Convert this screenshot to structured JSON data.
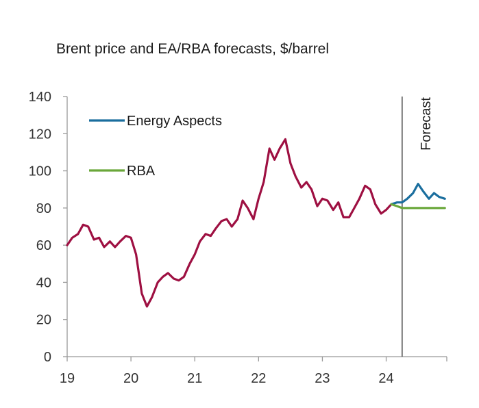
{
  "chart_data": {
    "type": "line",
    "title": "Brent price and EA/RBA forecasts, $/barrel",
    "xlabel": "",
    "ylabel": "",
    "ylim": [
      0,
      140
    ],
    "yticks": [
      0,
      20,
      40,
      60,
      80,
      100,
      120,
      140
    ],
    "xlim": [
      2019,
      2024.95
    ],
    "xticks": [
      {
        "value": 2019,
        "label": "19"
      },
      {
        "value": 2020,
        "label": "20"
      },
      {
        "value": 2021,
        "label": "21"
      },
      {
        "value": 2022,
        "label": "22"
      },
      {
        "value": 2023,
        "label": "23"
      },
      {
        "value": 2024,
        "label": "24"
      }
    ],
    "forecast_start": 2024.25,
    "forecast_label": "Forecast",
    "colors": {
      "brent": "#9e1042",
      "energy_aspects": "#1a6e9e",
      "rba": "#6aa73a",
      "axis": "#999999",
      "forecast_line": "#555555"
    },
    "series": [
      {
        "name": "Brent",
        "key": "brent",
        "legend": false,
        "points": [
          [
            2019.0,
            60
          ],
          [
            2019.08,
            64
          ],
          [
            2019.17,
            66
          ],
          [
            2019.25,
            71
          ],
          [
            2019.33,
            70
          ],
          [
            2019.42,
            63
          ],
          [
            2019.5,
            64
          ],
          [
            2019.58,
            59
          ],
          [
            2019.67,
            62
          ],
          [
            2019.75,
            59
          ],
          [
            2019.83,
            62
          ],
          [
            2019.92,
            65
          ],
          [
            2020.0,
            64
          ],
          [
            2020.08,
            55
          ],
          [
            2020.17,
            34
          ],
          [
            2020.25,
            27
          ],
          [
            2020.33,
            32
          ],
          [
            2020.42,
            40
          ],
          [
            2020.5,
            43
          ],
          [
            2020.58,
            45
          ],
          [
            2020.67,
            42
          ],
          [
            2020.75,
            41
          ],
          [
            2020.83,
            43
          ],
          [
            2020.92,
            50
          ],
          [
            2021.0,
            55
          ],
          [
            2021.08,
            62
          ],
          [
            2021.17,
            66
          ],
          [
            2021.25,
            65
          ],
          [
            2021.33,
            69
          ],
          [
            2021.42,
            73
          ],
          [
            2021.5,
            74
          ],
          [
            2021.58,
            70
          ],
          [
            2021.67,
            74
          ],
          [
            2021.75,
            84
          ],
          [
            2021.83,
            80
          ],
          [
            2021.92,
            74
          ],
          [
            2022.0,
            85
          ],
          [
            2022.08,
            94
          ],
          [
            2022.17,
            112
          ],
          [
            2022.25,
            106
          ],
          [
            2022.33,
            112
          ],
          [
            2022.42,
            117
          ],
          [
            2022.5,
            104
          ],
          [
            2022.58,
            97
          ],
          [
            2022.67,
            91
          ],
          [
            2022.75,
            94
          ],
          [
            2022.83,
            90
          ],
          [
            2022.92,
            81
          ],
          [
            2023.0,
            85
          ],
          [
            2023.08,
            84
          ],
          [
            2023.17,
            79
          ],
          [
            2023.25,
            83
          ],
          [
            2023.33,
            75
          ],
          [
            2023.42,
            75
          ],
          [
            2023.5,
            80
          ],
          [
            2023.58,
            85
          ],
          [
            2023.67,
            92
          ],
          [
            2023.75,
            90
          ],
          [
            2023.83,
            82
          ],
          [
            2023.92,
            77
          ],
          [
            2024.0,
            79
          ],
          [
            2024.08,
            82
          ]
        ]
      },
      {
        "name": "Energy Aspects",
        "key": "energy_aspects",
        "legend": true,
        "points": [
          [
            2024.08,
            82
          ],
          [
            2024.17,
            83
          ],
          [
            2024.25,
            83
          ],
          [
            2024.33,
            85
          ],
          [
            2024.42,
            88
          ],
          [
            2024.5,
            93
          ],
          [
            2024.58,
            89
          ],
          [
            2024.67,
            85
          ],
          [
            2024.75,
            88
          ],
          [
            2024.83,
            86
          ],
          [
            2024.92,
            85
          ]
        ]
      },
      {
        "name": "RBA",
        "key": "rba",
        "legend": true,
        "points": [
          [
            2024.08,
            82
          ],
          [
            2024.17,
            81
          ],
          [
            2024.25,
            80
          ],
          [
            2024.42,
            80
          ],
          [
            2024.58,
            80
          ],
          [
            2024.75,
            80
          ],
          [
            2024.92,
            80
          ]
        ]
      }
    ]
  }
}
